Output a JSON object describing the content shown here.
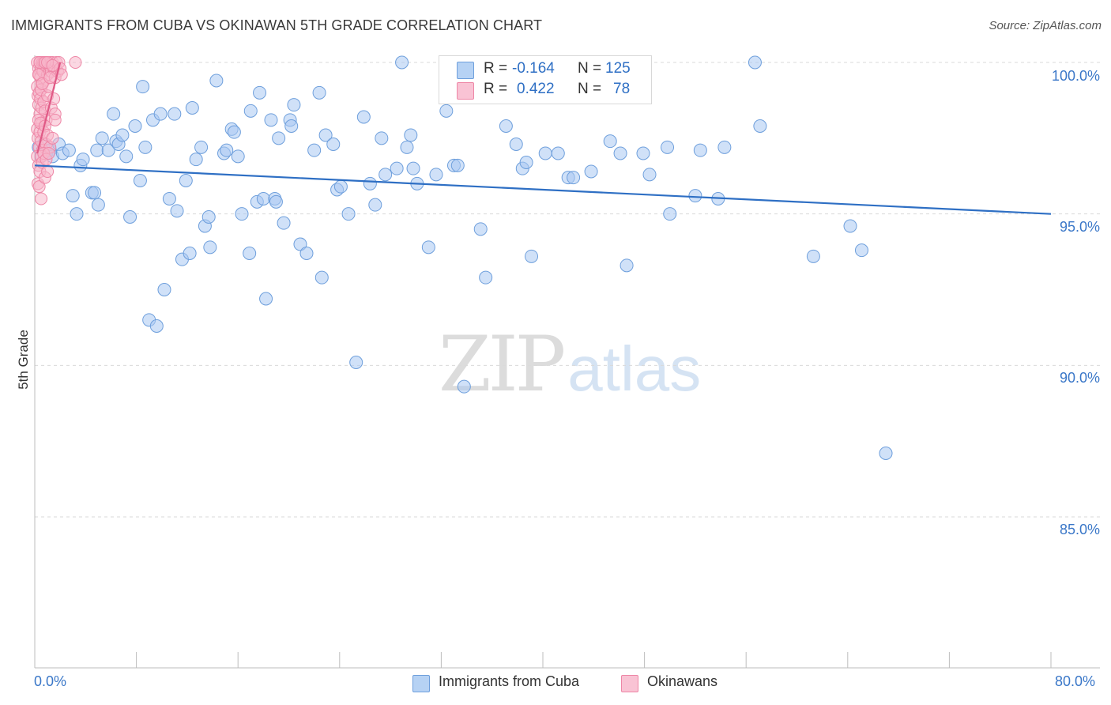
{
  "title": "IMMIGRANTS FROM CUBA VS OKINAWAN 5TH GRADE CORRELATION CHART",
  "source": "Source: ZipAtlas.com",
  "watermark": {
    "zip": "ZIP",
    "atlas": "atlas"
  },
  "legend_top": {
    "rows": [
      {
        "r_key": "R =",
        "r_value": "-0.164",
        "n_key": "N =",
        "n_value": "125",
        "color": "#a9c9f2"
      },
      {
        "r_key": "R =",
        "r_value": "0.422",
        "n_key": "N =",
        "n_value": "78",
        "color": "#f8b6cb"
      }
    ]
  },
  "chart_data": {
    "type": "scatter",
    "title": "IMMIGRANTS FROM CUBA VS OKINAWAN 5TH GRADE CORRELATION CHART",
    "xlabel": "",
    "ylabel": "5th Grade",
    "xlim": [
      0,
      80
    ],
    "ylim": [
      80.0,
      101.0
    ],
    "x_tick_labels": [
      "0.0%",
      "80.0%"
    ],
    "y_ticks": [
      85.0,
      90.0,
      95.0,
      100.0
    ],
    "y_tick_labels": [
      "85.0%",
      "90.0%",
      "95.0%",
      "100.0%"
    ],
    "grid": true,
    "legend_position": "bottom-center",
    "series": [
      {
        "name": "Immigrants from Cuba",
        "color": "#a9c9f2",
        "stroke": "#6e9fdc",
        "trend": {
          "x": [
            0,
            80
          ],
          "y": [
            96.6,
            95.0
          ],
          "color": "#2e6fc4"
        },
        "points": [
          [
            0.3,
            97.2
          ],
          [
            0.5,
            96.9
          ],
          [
            0.7,
            97.3
          ],
          [
            0.9,
            97.0
          ],
          [
            1.2,
            97.1
          ],
          [
            1.4,
            96.9
          ],
          [
            1.9,
            97.3
          ],
          [
            2.2,
            97.0
          ],
          [
            2.7,
            97.1
          ],
          [
            3.0,
            95.6
          ],
          [
            3.3,
            95.0
          ],
          [
            3.6,
            96.6
          ],
          [
            3.8,
            96.8
          ],
          [
            4.5,
            95.7
          ],
          [
            4.7,
            95.7
          ],
          [
            5.0,
            95.3
          ],
          [
            4.9,
            97.1
          ],
          [
            5.3,
            97.5
          ],
          [
            5.8,
            97.1
          ],
          [
            6.2,
            98.3
          ],
          [
            6.4,
            97.4
          ],
          [
            6.6,
            97.3
          ],
          [
            6.9,
            97.6
          ],
          [
            7.2,
            96.9
          ],
          [
            7.5,
            94.9
          ],
          [
            7.9,
            97.9
          ],
          [
            8.3,
            96.1
          ],
          [
            8.5,
            99.2
          ],
          [
            8.7,
            97.2
          ],
          [
            9.0,
            91.5
          ],
          [
            9.3,
            98.1
          ],
          [
            9.6,
            91.3
          ],
          [
            9.9,
            98.3
          ],
          [
            10.2,
            92.5
          ],
          [
            10.6,
            95.5
          ],
          [
            11.0,
            98.3
          ],
          [
            11.2,
            95.1
          ],
          [
            11.6,
            93.5
          ],
          [
            11.9,
            96.1
          ],
          [
            12.2,
            93.7
          ],
          [
            12.4,
            98.5
          ],
          [
            12.7,
            96.8
          ],
          [
            13.1,
            97.2
          ],
          [
            13.4,
            94.6
          ],
          [
            13.7,
            94.9
          ],
          [
            13.8,
            93.9
          ],
          [
            14.3,
            99.4
          ],
          [
            14.9,
            97.0
          ],
          [
            15.1,
            97.1
          ],
          [
            15.5,
            97.8
          ],
          [
            15.7,
            97.7
          ],
          [
            16.0,
            96.9
          ],
          [
            16.3,
            95.0
          ],
          [
            16.9,
            93.7
          ],
          [
            17.0,
            98.4
          ],
          [
            17.5,
            95.4
          ],
          [
            17.7,
            99.0
          ],
          [
            18.0,
            95.5
          ],
          [
            18.2,
            92.2
          ],
          [
            18.6,
            98.1
          ],
          [
            18.9,
            95.5
          ],
          [
            19.0,
            95.4
          ],
          [
            19.2,
            97.5
          ],
          [
            19.6,
            94.7
          ],
          [
            20.1,
            98.1
          ],
          [
            20.2,
            97.9
          ],
          [
            20.4,
            98.6
          ],
          [
            20.9,
            94.0
          ],
          [
            21.4,
            93.7
          ],
          [
            22.0,
            97.1
          ],
          [
            22.4,
            99.0
          ],
          [
            22.6,
            92.9
          ],
          [
            22.9,
            97.6
          ],
          [
            23.5,
            97.3
          ],
          [
            23.8,
            95.8
          ],
          [
            24.1,
            95.9
          ],
          [
            24.7,
            95.0
          ],
          [
            25.3,
            90.1
          ],
          [
            25.9,
            98.2
          ],
          [
            26.4,
            96.0
          ],
          [
            26.8,
            95.3
          ],
          [
            27.3,
            97.5
          ],
          [
            27.6,
            96.3
          ],
          [
            28.5,
            96.5
          ],
          [
            28.9,
            100.0
          ],
          [
            29.3,
            97.2
          ],
          [
            29.6,
            97.6
          ],
          [
            29.8,
            96.5
          ],
          [
            30.1,
            96.0
          ],
          [
            31.0,
            93.9
          ],
          [
            31.6,
            96.3
          ],
          [
            32.4,
            98.4
          ],
          [
            33.0,
            96.6
          ],
          [
            33.3,
            96.6
          ],
          [
            33.8,
            89.3
          ],
          [
            35.1,
            94.5
          ],
          [
            35.5,
            92.9
          ],
          [
            37.1,
            97.9
          ],
          [
            37.9,
            97.3
          ],
          [
            38.4,
            96.5
          ],
          [
            38.7,
            96.7
          ],
          [
            39.1,
            93.6
          ],
          [
            40.2,
            97.0
          ],
          [
            41.2,
            97.0
          ],
          [
            42.0,
            96.2
          ],
          [
            42.4,
            96.2
          ],
          [
            43.8,
            96.4
          ],
          [
            45.3,
            97.4
          ],
          [
            46.1,
            97.0
          ],
          [
            46.6,
            93.3
          ],
          [
            47.9,
            97.0
          ],
          [
            48.4,
            96.3
          ],
          [
            49.8,
            97.2
          ],
          [
            50.0,
            95.0
          ],
          [
            52.0,
            95.6
          ],
          [
            52.4,
            97.1
          ],
          [
            53.8,
            95.5
          ],
          [
            54.3,
            97.2
          ],
          [
            56.7,
            100.0
          ],
          [
            57.1,
            97.9
          ],
          [
            61.3,
            93.6
          ],
          [
            64.2,
            94.6
          ],
          [
            65.1,
            93.8
          ],
          [
            67.0,
            87.1
          ]
        ]
      },
      {
        "name": "Okinawans",
        "color": "#f8b6cb",
        "stroke": "#ee86a6",
        "trend": {
          "x": [
            0.2,
            2.0
          ],
          "y": [
            97.0,
            100.0
          ],
          "color": "#e05a86"
        },
        "points": [
          [
            0.2,
            100.0
          ],
          [
            0.3,
            99.8
          ],
          [
            0.35,
            99.6
          ],
          [
            0.4,
            100.0
          ],
          [
            0.45,
            99.5
          ],
          [
            0.5,
            99.8
          ],
          [
            0.55,
            99.3
          ],
          [
            0.6,
            100.0
          ],
          [
            0.65,
            99.7
          ],
          [
            0.7,
            100.0
          ],
          [
            0.75,
            99.4
          ],
          [
            0.8,
            99.9
          ],
          [
            0.9,
            100.0
          ],
          [
            1.0,
            99.6
          ],
          [
            1.1,
            99.9
          ],
          [
            1.2,
            100.0
          ],
          [
            1.3,
            99.7
          ],
          [
            1.4,
            100.0
          ],
          [
            1.5,
            99.8
          ],
          [
            1.6,
            99.5
          ],
          [
            1.7,
            100.0
          ],
          [
            1.8,
            99.7
          ],
          [
            1.9,
            100.0
          ],
          [
            2.0,
            99.8
          ],
          [
            2.1,
            99.6
          ],
          [
            3.2,
            100.0
          ],
          [
            0.2,
            99.2
          ],
          [
            0.25,
            98.9
          ],
          [
            0.3,
            98.6
          ],
          [
            0.35,
            99.0
          ],
          [
            0.4,
            98.3
          ],
          [
            0.45,
            98.8
          ],
          [
            0.5,
            99.1
          ],
          [
            0.55,
            98.5
          ],
          [
            0.6,
            98.0
          ],
          [
            0.7,
            98.7
          ],
          [
            0.8,
            98.4
          ],
          [
            0.9,
            98.1
          ],
          [
            1.0,
            98.9
          ],
          [
            1.1,
            99.2
          ],
          [
            1.3,
            98.5
          ],
          [
            1.5,
            98.8
          ],
          [
            1.6,
            98.3
          ],
          [
            0.2,
            97.8
          ],
          [
            0.25,
            97.5
          ],
          [
            0.3,
            98.1
          ],
          [
            0.35,
            97.2
          ],
          [
            0.4,
            97.7
          ],
          [
            0.45,
            98.0
          ],
          [
            0.5,
            97.4
          ],
          [
            0.6,
            97.1
          ],
          [
            0.7,
            97.7
          ],
          [
            0.8,
            97.9
          ],
          [
            0.9,
            97.3
          ],
          [
            1.0,
            97.6
          ],
          [
            1.2,
            97.2
          ],
          [
            1.4,
            97.5
          ],
          [
            1.6,
            98.1
          ],
          [
            0.2,
            96.9
          ],
          [
            0.3,
            96.6
          ],
          [
            0.4,
            96.4
          ],
          [
            0.5,
            96.9
          ],
          [
            0.6,
            96.7
          ],
          [
            0.7,
            97.0
          ],
          [
            0.9,
            96.8
          ],
          [
            1.1,
            97.0
          ],
          [
            0.25,
            96.0
          ],
          [
            0.35,
            95.9
          ],
          [
            0.5,
            95.5
          ],
          [
            0.8,
            96.2
          ],
          [
            1.0,
            96.4
          ],
          [
            0.3,
            99.6
          ],
          [
            0.4,
            100.0
          ],
          [
            0.6,
            99.3
          ],
          [
            0.8,
            100.0
          ],
          [
            1.0,
            100.0
          ],
          [
            1.2,
            99.5
          ],
          [
            1.4,
            99.9
          ]
        ]
      }
    ]
  }
}
